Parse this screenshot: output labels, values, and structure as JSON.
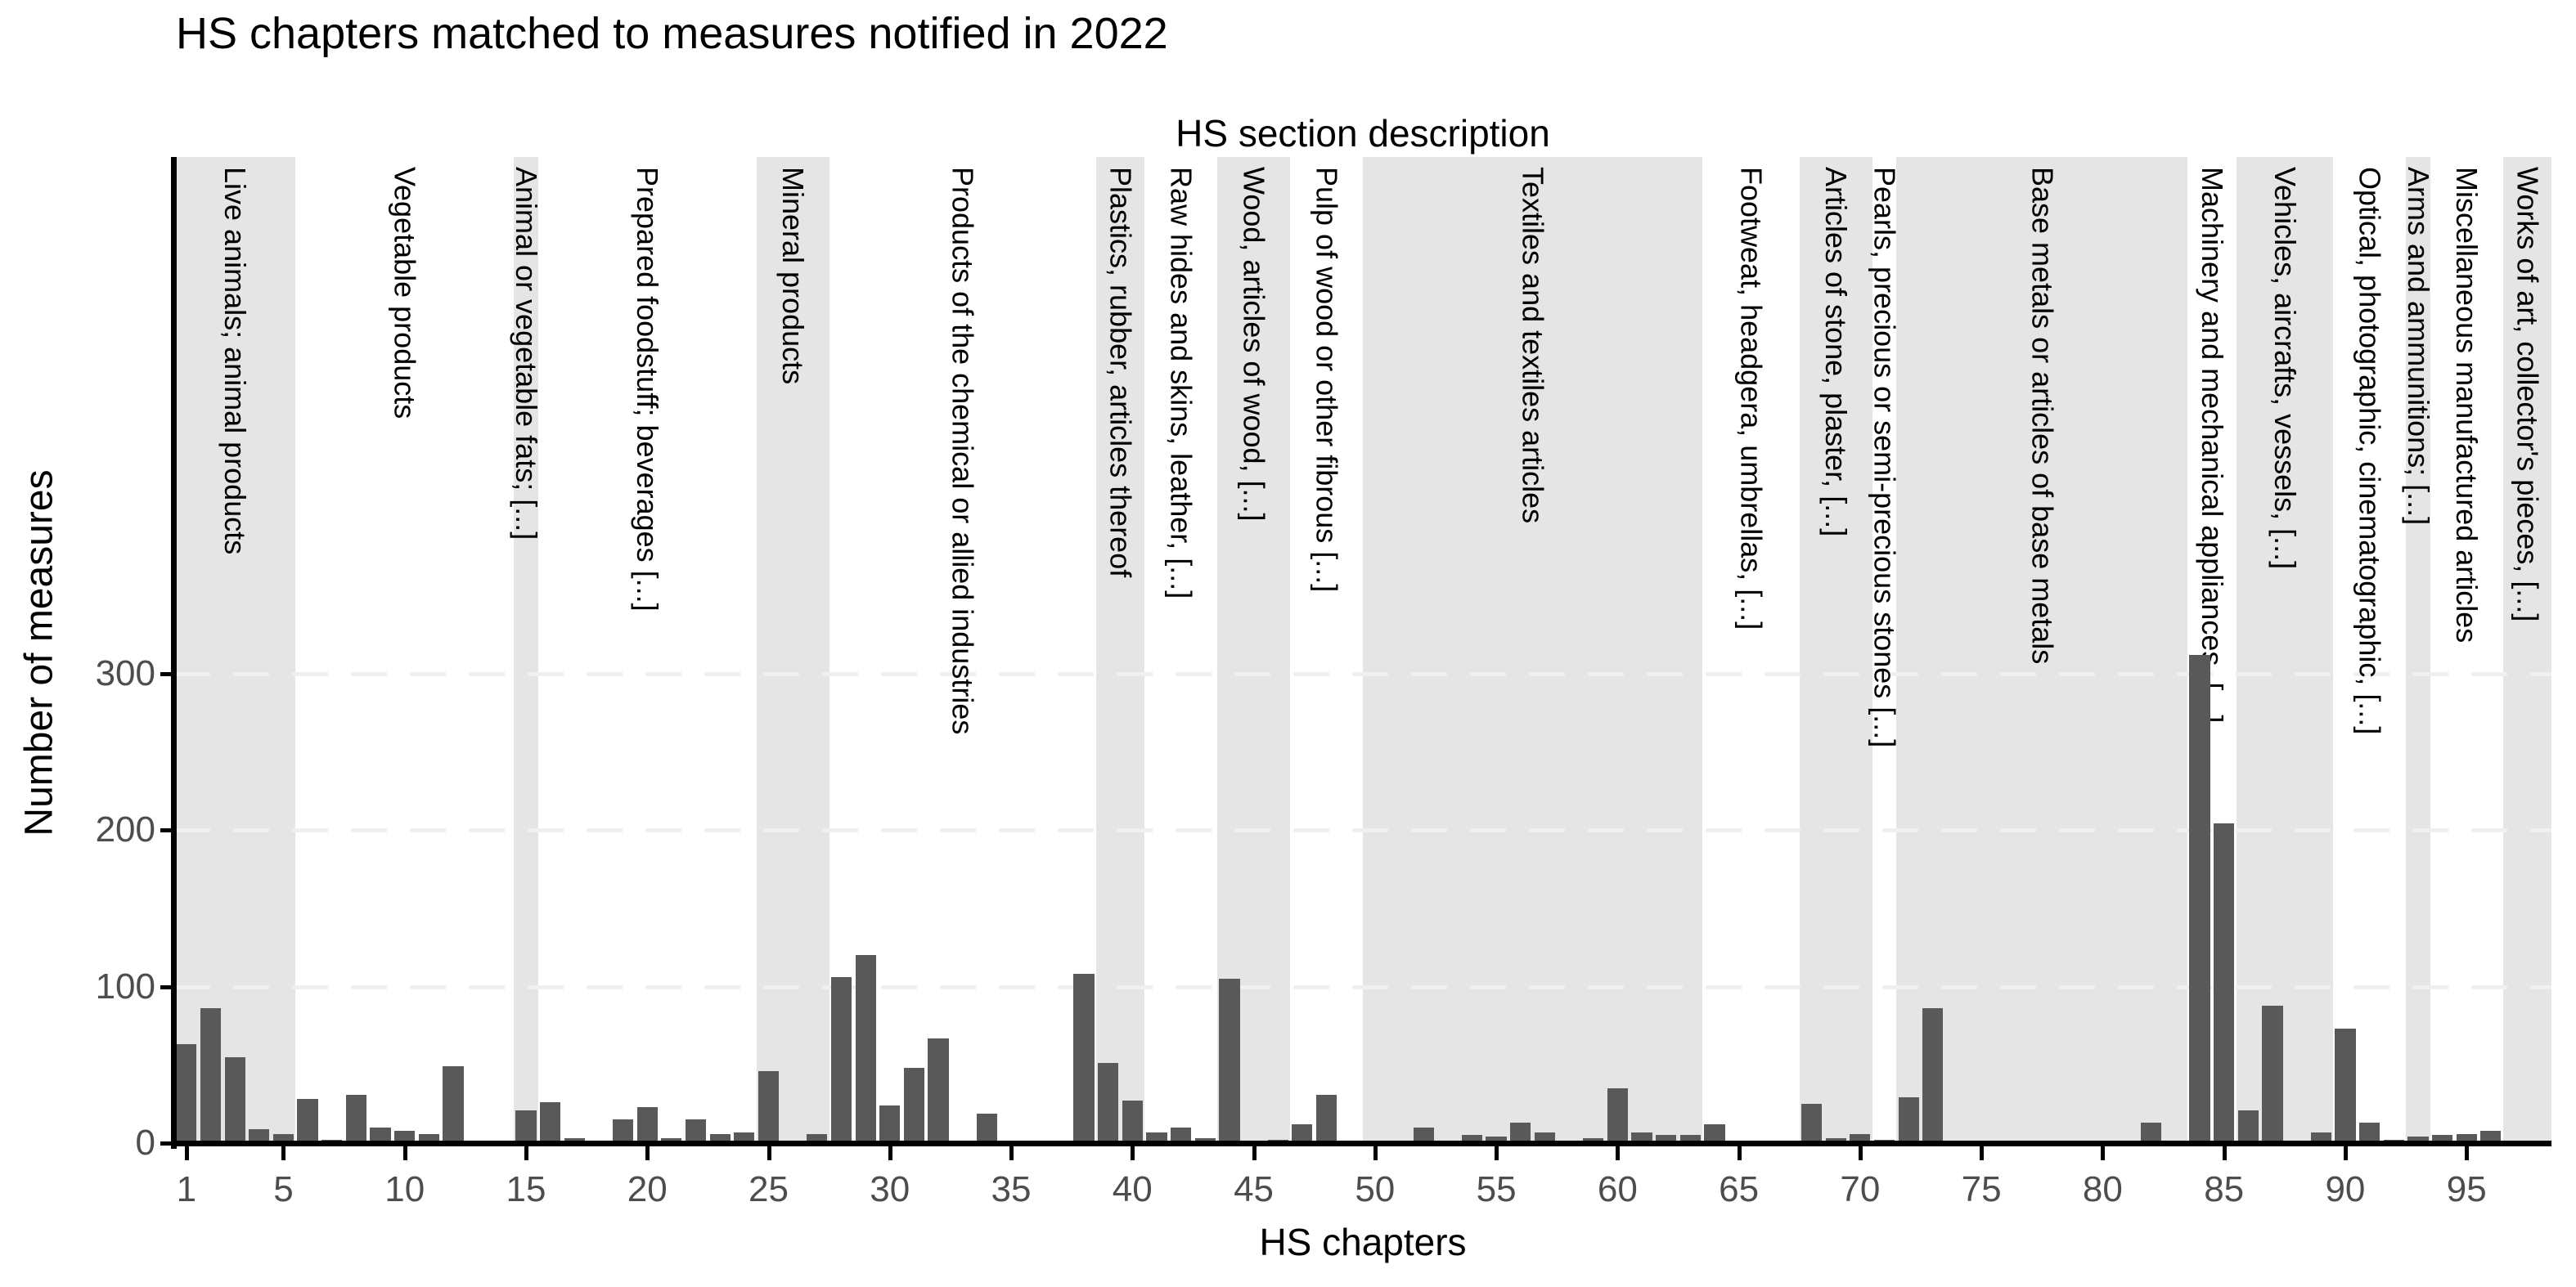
{
  "chart": {
    "title": "HS chapters matched to measures notified in 2022",
    "top_axis_title": "HS section description",
    "ylabel": "Number of measures",
    "xlabel": "HS chapters"
  },
  "chart_data": {
    "type": "bar",
    "title": "HS chapters matched to measures notified in 2022",
    "xlabel": "HS chapters",
    "ylabel": "Number of measures",
    "top_axis_label": "HS section description",
    "x": [
      1,
      2,
      3,
      4,
      5,
      6,
      7,
      8,
      9,
      10,
      11,
      12,
      13,
      14,
      15,
      16,
      17,
      18,
      19,
      20,
      21,
      22,
      23,
      24,
      25,
      26,
      27,
      28,
      29,
      30,
      31,
      32,
      33,
      34,
      35,
      36,
      37,
      38,
      39,
      40,
      41,
      42,
      43,
      44,
      45,
      46,
      47,
      48,
      49,
      50,
      51,
      52,
      53,
      54,
      55,
      56,
      57,
      58,
      59,
      60,
      61,
      62,
      63,
      64,
      65,
      66,
      67,
      68,
      69,
      70,
      71,
      72,
      73,
      74,
      75,
      76,
      77,
      78,
      79,
      80,
      81,
      82,
      83,
      84,
      85,
      86,
      87,
      88,
      89,
      90,
      91,
      92,
      93,
      94,
      95,
      96,
      97
    ],
    "values": [
      63,
      86,
      55,
      9,
      6,
      28,
      2,
      31,
      10,
      8,
      6,
      49,
      0,
      0,
      21,
      26,
      3,
      0,
      15,
      23,
      3,
      15,
      6,
      7,
      46,
      1,
      6,
      106,
      120,
      24,
      48,
      67,
      1,
      19,
      1,
      1,
      0,
      108,
      51,
      27,
      7,
      10,
      3,
      105,
      0,
      2,
      12,
      31,
      0,
      0,
      0,
      10,
      0,
      5,
      4,
      13,
      7,
      0,
      3,
      35,
      7,
      5,
      5,
      12,
      0,
      1,
      1,
      25,
      3,
      6,
      2,
      29,
      86,
      0,
      0,
      0,
      0,
      0,
      0,
      0,
      1,
      13,
      0,
      312,
      204,
      21,
      88,
      0,
      7,
      73,
      13,
      2,
      4,
      5,
      6,
      8,
      0
    ],
    "x_ticks": [
      1,
      5,
      10,
      15,
      20,
      25,
      30,
      35,
      40,
      45,
      50,
      55,
      60,
      65,
      70,
      75,
      80,
      85,
      90,
      95
    ],
    "y_ticks": [
      0,
      100,
      200,
      300
    ],
    "xlim": [
      0.5,
      98.5
    ],
    "ylim": [
      0,
      630
    ],
    "grid": "dashed horizontal at y breaks",
    "bar_color": "#595959",
    "band_shaded_color": "#e5e5e5",
    "grid_color": "#f0f0f0",
    "tick_label_color": "#4d4d4d",
    "sections": [
      {
        "section": "I",
        "label": "Live animals; animal products",
        "x0": 0.5,
        "x1": 5.5,
        "shaded": true
      },
      {
        "section": "II",
        "label": "Vegetable products",
        "x0": 5.5,
        "x1": 14.5,
        "shaded": false
      },
      {
        "section": "III",
        "label": "Animal or vegetable fats; [...]",
        "x0": 14.5,
        "x1": 15.5,
        "shaded": true
      },
      {
        "section": "IV",
        "label": "Prepared foodstuff; beverages [...]",
        "x0": 15.5,
        "x1": 24.5,
        "shaded": false
      },
      {
        "section": "V",
        "label": "Mineral products",
        "x0": 24.5,
        "x1": 27.5,
        "shaded": true
      },
      {
        "section": "VI",
        "label": "Products of the chemical or allied industries",
        "x0": 27.5,
        "x1": 38.5,
        "shaded": false
      },
      {
        "section": "VII",
        "label": "Plastics, rubber, articles thereof",
        "x0": 38.5,
        "x1": 40.5,
        "shaded": true
      },
      {
        "section": "VIII",
        "label": "Raw hides and skins, leather, [...]",
        "x0": 40.5,
        "x1": 43.5,
        "shaded": false
      },
      {
        "section": "IX",
        "label": "Wood, articles of wood, [...]",
        "x0": 43.5,
        "x1": 46.5,
        "shaded": true
      },
      {
        "section": "X",
        "label": "Pulp of wood or other fibrous [...]",
        "x0": 46.5,
        "x1": 49.5,
        "shaded": false
      },
      {
        "section": "XI",
        "label": "Textiles and textiles articles",
        "x0": 49.5,
        "x1": 63.5,
        "shaded": true
      },
      {
        "section": "XII",
        "label": "Footweat, headgera, umbrellas, [...]",
        "x0": 63.5,
        "x1": 67.5,
        "shaded": false
      },
      {
        "section": "XIII",
        "label": "Articles of stone, plaster, [...]",
        "x0": 67.5,
        "x1": 70.5,
        "shaded": true
      },
      {
        "section": "XIV",
        "label": "Pearls, precious or semi-precious stones [...]",
        "x0": 70.5,
        "x1": 71.5,
        "shaded": false
      },
      {
        "section": "XV",
        "label": "Base metals or articles of base metals",
        "x0": 71.5,
        "x1": 83.5,
        "shaded": true
      },
      {
        "section": "XVI",
        "label": "Machinery and mechanical appliances, [...]",
        "x0": 83.5,
        "x1": 85.5,
        "shaded": false
      },
      {
        "section": "XVII",
        "label": "Vehicles, aircrafts, vessels, [...]",
        "x0": 85.5,
        "x1": 89.5,
        "shaded": true
      },
      {
        "section": "XVIII",
        "label": "Optical, photographic, cinematographic, [...]",
        "x0": 89.5,
        "x1": 92.5,
        "shaded": false
      },
      {
        "section": "XIX",
        "label": "Arms and ammunitions; [...]",
        "x0": 92.5,
        "x1": 93.5,
        "shaded": true
      },
      {
        "section": "XX",
        "label": "Miscellaneous manufactured articles",
        "x0": 93.5,
        "x1": 96.5,
        "shaded": false
      },
      {
        "section": "XXI",
        "label": "Works of art, collector's pieces, [...]",
        "x0": 96.5,
        "x1": 98.5,
        "shaded": true
      }
    ]
  }
}
